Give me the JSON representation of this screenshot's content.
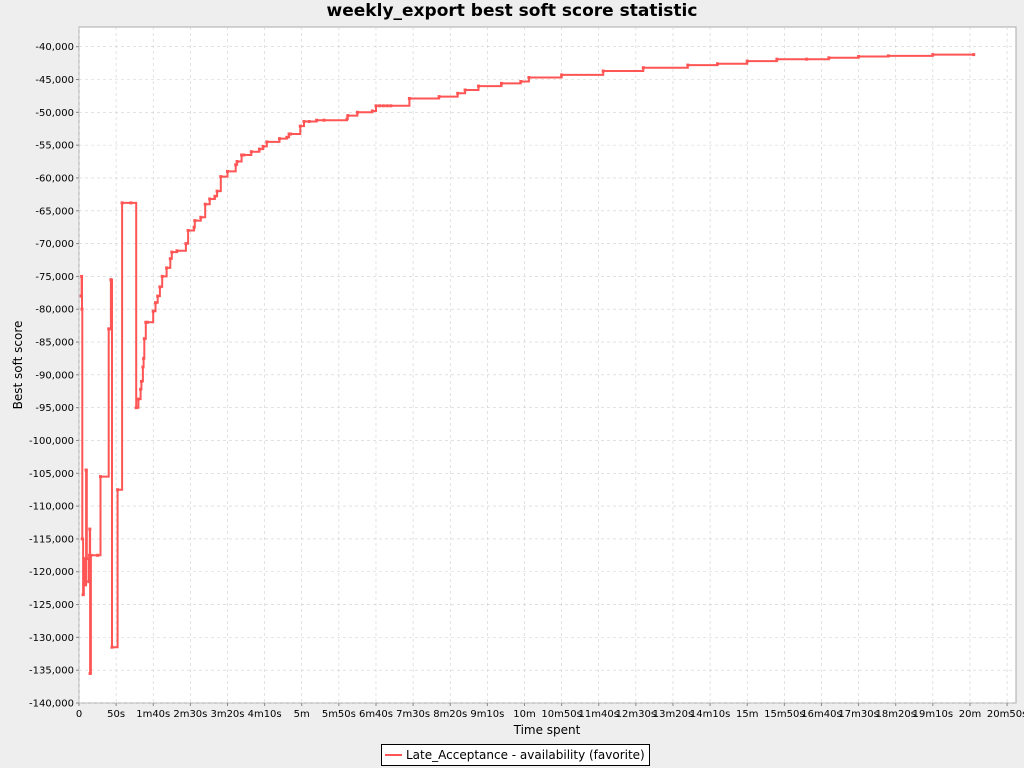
{
  "chart_data": {
    "type": "line",
    "title": "weekly_export best soft score statistic",
    "xlabel": "Time spent",
    "ylabel": "Best soft score",
    "xlim": [
      0,
      1262
    ],
    "ylim": [
      -140000,
      -37000
    ],
    "grid": true,
    "legend_position": "bottom",
    "x_tick_values": [
      0,
      50,
      100,
      150,
      200,
      250,
      300,
      350,
      400,
      450,
      500,
      550,
      600,
      650,
      700,
      750,
      800,
      850,
      900,
      950,
      1000,
      1050,
      1100,
      1150,
      1200,
      1250
    ],
    "x_tick_labels": [
      "0",
      "50s",
      "1m40s",
      "2m30s",
      "3m20s",
      "4m10s",
      "5m",
      "5m50s",
      "6m40s",
      "7m30s",
      "8m20s",
      "9m10s",
      "10m",
      "10m50s",
      "11m40s",
      "12m30s",
      "13m20s",
      "14m10s",
      "15m",
      "15m50s",
      "16m40s",
      "17m30s",
      "18m20s",
      "19m10s",
      "20m",
      "20m50s"
    ],
    "y_tick_values": [
      -40000,
      -45000,
      -50000,
      -55000,
      -60000,
      -65000,
      -70000,
      -75000,
      -80000,
      -85000,
      -90000,
      -95000,
      -100000,
      -105000,
      -110000,
      -115000,
      -120000,
      -125000,
      -130000,
      -135000,
      -140000
    ],
    "y_tick_labels": [
      "-40,000",
      "-45,000",
      "-50,000",
      "-55,000",
      "-60,000",
      "-65,000",
      "-70,000",
      "-75,000",
      "-80,000",
      "-85,000",
      "-90,000",
      "-95,000",
      "-100,000",
      "-105,000",
      "-110,000",
      "-115,000",
      "-120,000",
      "-125,000",
      "-130,000",
      "-135,000",
      "-140,000"
    ],
    "series": [
      {
        "name": "Late_Acceptance - availability (favorite)",
        "color": "#ff5555",
        "step": true,
        "x": [
          3,
          3.5,
          4,
          4.5,
          5.5,
          6.5,
          7.5,
          8.5,
          9.5,
          10.5,
          13,
          14,
          14.5,
          15,
          16,
          25,
          29,
          40,
          41,
          43,
          44.5,
          52,
          58,
          70,
          77,
          80,
          83,
          84,
          86,
          87,
          88,
          90,
          92,
          100,
          103,
          106,
          109,
          112,
          118,
          123,
          125,
          132,
          144,
          147,
          155,
          156,
          164,
          170,
          176,
          183,
          186,
          191,
          200,
          211,
          213,
          219,
          222,
          232,
          243,
          248,
          253,
          270,
          280,
          283,
          285,
          298,
          303,
          310,
          320,
          330,
          361,
          362,
          375,
          395,
          400,
          405,
          410,
          415,
          420,
          445,
          485,
          510,
          520,
          538,
          569,
          595,
          606,
          650,
          706,
          760,
          820,
          860,
          900,
          940,
          980,
          1010,
          1050,
          1090,
          1150,
          1205
        ],
        "y": [
          -78000,
          -75000,
          -80000,
          -115000,
          -123500,
          -120000,
          -118000,
          -122000,
          -104500,
          -118000,
          -121500,
          -117500,
          -113500,
          -135500,
          -117500,
          -117500,
          -105500,
          -83000,
          -83000,
          -75500,
          -131500,
          -107500,
          -63800,
          -63800,
          -95000,
          -93700,
          -92200,
          -91000,
          -88800,
          -87500,
          -84500,
          -82000,
          -82000,
          -80300,
          -79000,
          -78000,
          -76600,
          -75000,
          -73700,
          -72300,
          -71300,
          -71100,
          -70000,
          -68000,
          -67500,
          -66500,
          -66000,
          -64000,
          -63200,
          -62800,
          -62000,
          -59800,
          -59000,
          -58000,
          -57500,
          -56500,
          -56500,
          -56000,
          -55600,
          -55200,
          -54500,
          -54000,
          -53800,
          -53300,
          -53300,
          -52100,
          -51400,
          -51400,
          -51200,
          -51200,
          -51000,
          -50500,
          -50000,
          -49800,
          -49000,
          -49000,
          -49000,
          -49000,
          -49000,
          -47900,
          -47600,
          -47100,
          -46600,
          -46000,
          -45600,
          -45300,
          -44700,
          -44300,
          -43700,
          -43200,
          -42800,
          -42600,
          -42200,
          -41900,
          -41900,
          -41700,
          -41500,
          -41400,
          -41200,
          -41200
        ]
      }
    ]
  }
}
